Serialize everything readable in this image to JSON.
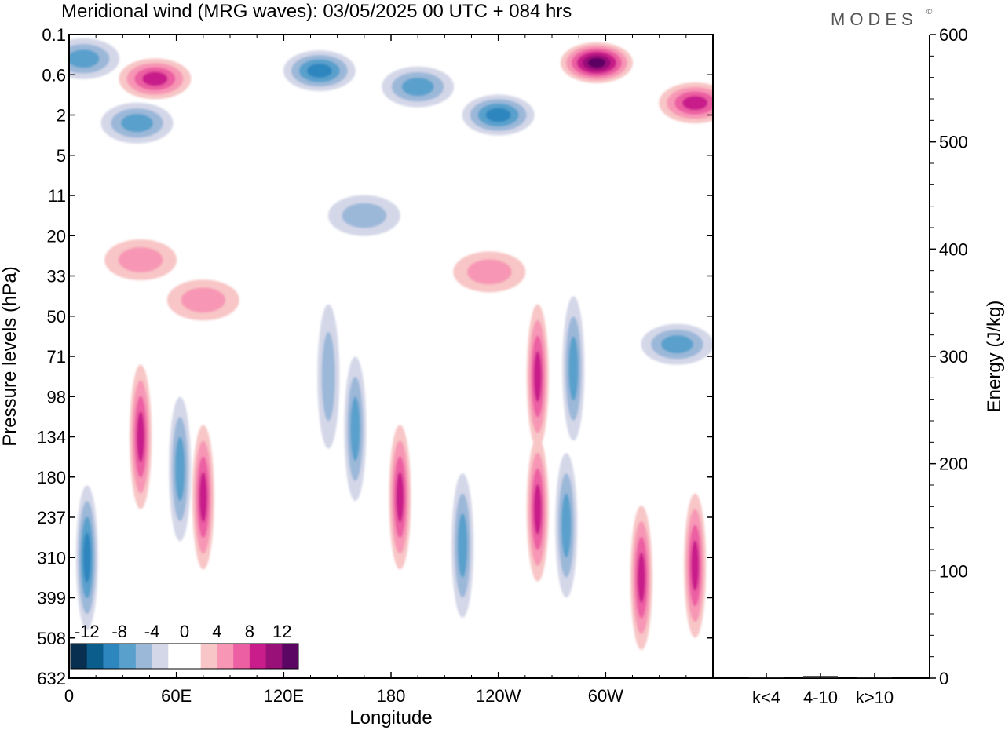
{
  "header": {
    "title": "Meridional wind (MRG waves):  03/05/2025  00 UTC  + 084 hrs",
    "brand": "MODES",
    "brand_mark": "©"
  },
  "chart_data": [
    {
      "type": "heatmap",
      "title": "Meridional wind (MRG waves):  03/05/2025  00 UTC  + 084 hrs",
      "xlabel": "Longitude",
      "ylabel": "Pressure levels (hPa)",
      "x_ticks": [
        "0",
        "60E",
        "120E",
        "180",
        "120W",
        "60W"
      ],
      "x_tick_degrees": [
        0,
        60,
        120,
        180,
        240,
        300
      ],
      "xlim": [
        0,
        360
      ],
      "y_levels": [
        "0.1",
        "0.6",
        "2",
        "5",
        "11",
        "20",
        "33",
        "50",
        "71",
        "98",
        "134",
        "180",
        "237",
        "310",
        "399",
        "508",
        "632"
      ],
      "colorbar": {
        "labels": [
          "-12",
          "-8",
          "-4",
          "0",
          "4",
          "8",
          "12"
        ],
        "levels": [
          -14,
          -12,
          -10,
          -8,
          -6,
          -4,
          -2,
          0,
          2,
          4,
          6,
          8,
          10,
          12,
          14
        ],
        "colors": [
          "#082f4f",
          "#0b5d8c",
          "#2e86bf",
          "#5aa0cc",
          "#9cb8d9",
          "#d4d7e8",
          "#ffffff",
          "#ffffff",
          "#f8c6c6",
          "#f797b5",
          "#ec5fa2",
          "#c81d8a",
          "#9a1079",
          "#5c0663"
        ]
      },
      "features": [
        {
          "lon": 8,
          "level": 0.6,
          "value": -6
        },
        {
          "lon": 48,
          "level": 1.1,
          "value": 8
        },
        {
          "lon": 38,
          "level": 2.2,
          "value": -6
        },
        {
          "lon": 140,
          "level": 0.9,
          "value": -8
        },
        {
          "lon": 195,
          "level": 1.3,
          "value": -6
        },
        {
          "lon": 240,
          "level": 2.0,
          "value": -8
        },
        {
          "lon": 295,
          "level": 0.7,
          "value": 12
        },
        {
          "lon": 350,
          "level": 1.7,
          "value": 8
        },
        {
          "lon": 165,
          "level": 4.5,
          "value": -4
        },
        {
          "lon": 145,
          "level": 8.5,
          "value": -4
        },
        {
          "lon": 75,
          "level": 6.6,
          "value": 4
        },
        {
          "lon": 40,
          "level": 5.6,
          "value": 4
        },
        {
          "lon": 235,
          "level": 5.9,
          "value": 4
        },
        {
          "lon": 262,
          "level": 8.5,
          "value": 8
        },
        {
          "lon": 282,
          "level": 8.3,
          "value": -6
        },
        {
          "lon": 340,
          "level": 7.7,
          "value": -6
        },
        {
          "lon": 40,
          "level": 10.0,
          "value": 8
        },
        {
          "lon": 62,
          "level": 10.8,
          "value": -6
        },
        {
          "lon": 75,
          "level": 11.5,
          "value": 8
        },
        {
          "lon": 10,
          "level": 13.0,
          "value": -8
        },
        {
          "lon": 160,
          "level": 9.8,
          "value": -6
        },
        {
          "lon": 185,
          "level": 11.5,
          "value": 8
        },
        {
          "lon": 220,
          "level": 12.7,
          "value": -6
        },
        {
          "lon": 262,
          "level": 11.8,
          "value": 8
        },
        {
          "lon": 278,
          "level": 12.2,
          "value": -6
        },
        {
          "lon": 320,
          "level": 13.5,
          "value": 8
        },
        {
          "lon": 350,
          "level": 13.2,
          "value": 8
        }
      ]
    },
    {
      "type": "bar",
      "categories": [
        "k<4",
        "4-10",
        "k>10"
      ],
      "values": [
        0,
        2,
        0
      ],
      "ylabel": "Energy (J/kg)",
      "ylim": [
        0,
        600
      ],
      "y_ticks": [
        "0",
        "100",
        "200",
        "300",
        "400",
        "500",
        "600"
      ]
    }
  ]
}
